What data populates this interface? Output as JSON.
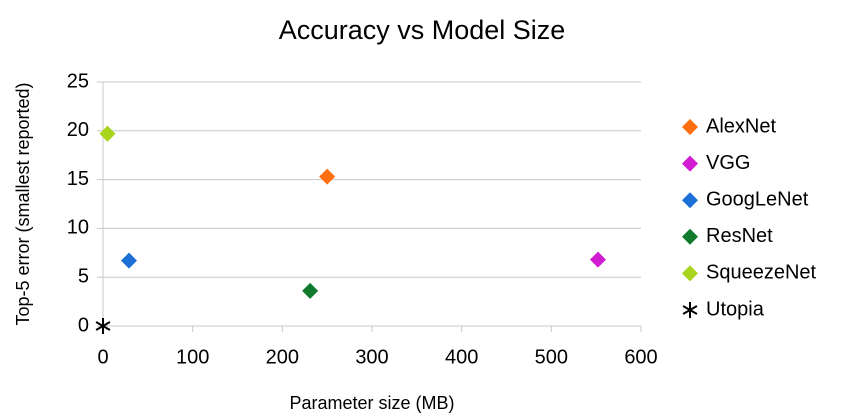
{
  "chart_data": {
    "type": "scatter",
    "title": "Accuracy vs Model Size",
    "xlabel": "Parameter size (MB)",
    "ylabel": "Top-5 error (smallest reported)",
    "xlim": [
      0,
      600
    ],
    "xticks": [
      0,
      100,
      200,
      300,
      400,
      500,
      600
    ],
    "ylim": [
      0,
      25
    ],
    "yticks": [
      0,
      5,
      10,
      15,
      20,
      25
    ],
    "grid": true,
    "legend": "right",
    "series": [
      {
        "name": "AlexNet",
        "color": "#ff6f0f",
        "marker": "diamond",
        "x": [
          250
        ],
        "values": [
          15.3
        ]
      },
      {
        "name": "VGG",
        "color": "#d21cd2",
        "marker": "diamond",
        "x": [
          552
        ],
        "values": [
          6.8
        ]
      },
      {
        "name": "GoogLeNet",
        "color": "#1b6fd6",
        "marker": "diamond",
        "x": [
          29
        ],
        "values": [
          6.7
        ]
      },
      {
        "name": "ResNet",
        "color": "#0f7a2b",
        "marker": "diamond",
        "x": [
          231
        ],
        "values": [
          3.6
        ]
      },
      {
        "name": "SqueezeNet",
        "color": "#a9d41c",
        "marker": "diamond",
        "x": [
          5
        ],
        "values": [
          19.7
        ]
      },
      {
        "name": "Utopia",
        "color": "#000000",
        "marker": "asterisk",
        "x": [
          0
        ],
        "values": [
          0
        ]
      }
    ]
  }
}
